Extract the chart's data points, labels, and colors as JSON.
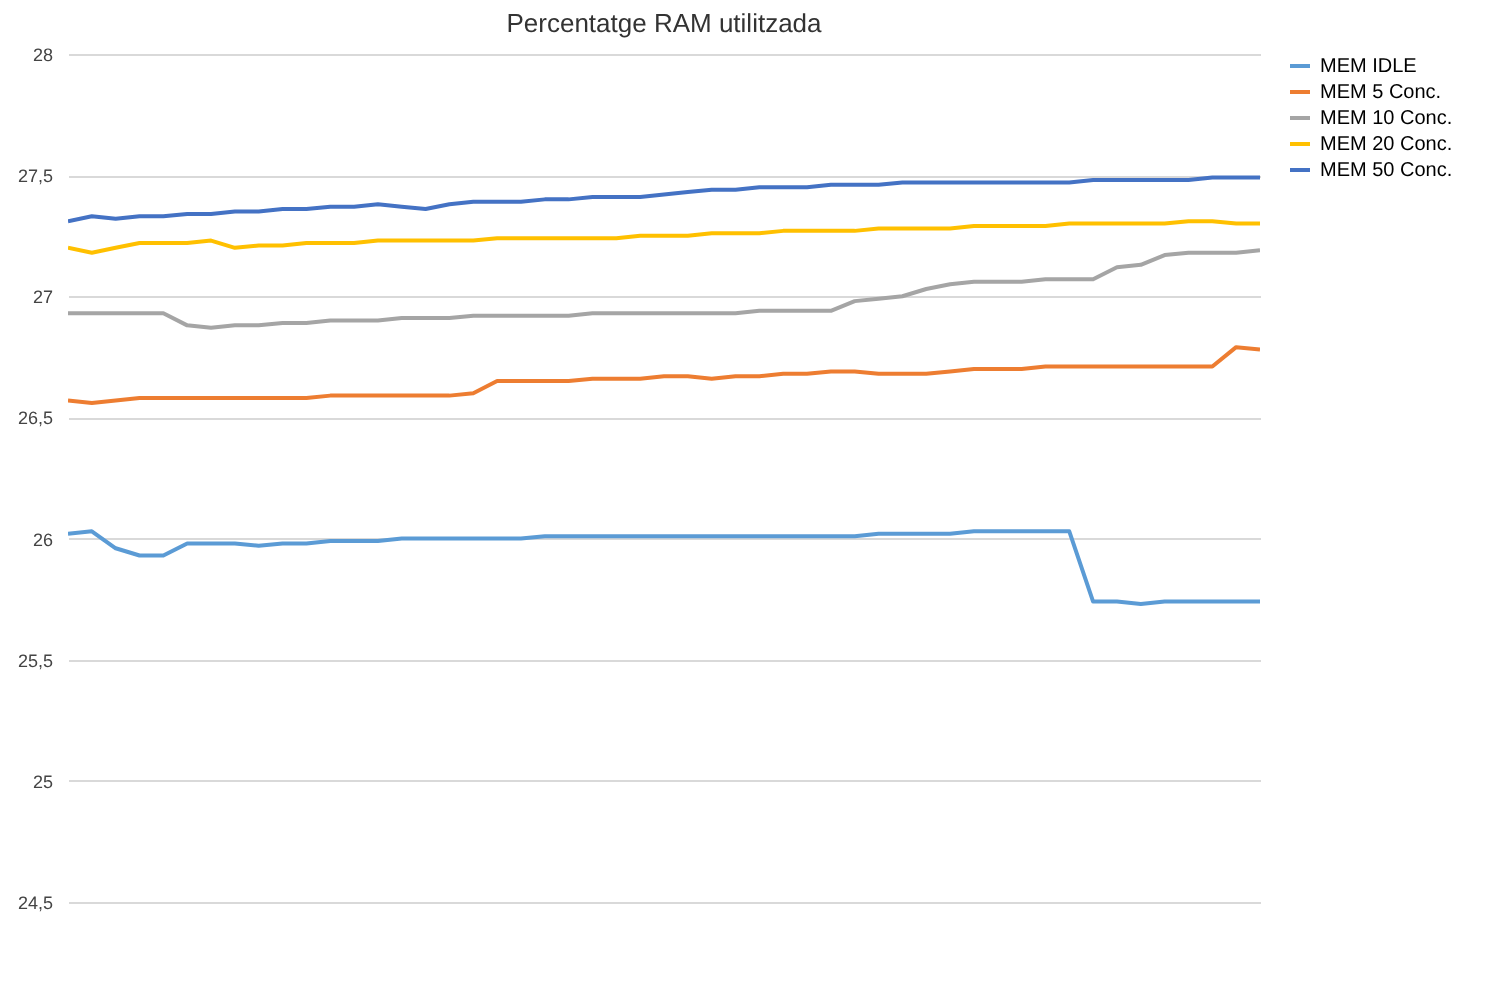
{
  "chart_data": {
    "type": "line",
    "title": "Percentatge RAM utilitzada",
    "categories": [
      null,
      null,
      null,
      null,
      null,
      null,
      null,
      null,
      null,
      null,
      null,
      null,
      null,
      null,
      null,
      null,
      null,
      null,
      null,
      null,
      null,
      null,
      null,
      null,
      null,
      null,
      null,
      null,
      null,
      null,
      null,
      null,
      null,
      null,
      null,
      null,
      null,
      null,
      null,
      null,
      null,
      null,
      null,
      null,
      null,
      null,
      null,
      null,
      null,
      null,
      null
    ],
    "ylim": [
      24.5,
      28
    ],
    "yticks": [
      {
        "value": 24.5,
        "label": "24,5"
      },
      25,
      {
        "value": 25.5,
        "label": "25,5"
      },
      26,
      {
        "value": 26.5,
        "label": "26,5"
      },
      27,
      {
        "value": 27.5,
        "label": "27,5"
      },
      28
    ],
    "grid": "y",
    "legend": "right",
    "tick_labels": "y",
    "line_style": "solid",
    "series": [
      {
        "name": "MEM IDLE",
        "color": "#5b9bd5",
        "values": [
          26.02,
          26.03,
          25.96,
          25.93,
          25.93,
          25.98,
          25.98,
          25.98,
          25.97,
          25.98,
          25.98,
          25.99,
          25.99,
          25.99,
          26.0,
          26.0,
          26.0,
          26.0,
          26.0,
          26.0,
          26.01,
          26.01,
          26.01,
          26.01,
          26.01,
          26.01,
          26.01,
          26.01,
          26.01,
          26.01,
          26.01,
          26.01,
          26.01,
          26.01,
          26.02,
          26.02,
          26.02,
          26.02,
          26.03,
          26.03,
          26.03,
          26.03,
          26.03,
          25.74,
          25.74,
          25.73,
          25.74,
          25.74,
          25.74,
          25.74,
          25.74
        ]
      },
      {
        "name": "MEM 5 Conc.",
        "color": "#ed7d31",
        "values": [
          26.57,
          26.56,
          26.57,
          26.58,
          26.58,
          26.58,
          26.58,
          26.58,
          26.58,
          26.58,
          26.58,
          26.59,
          26.59,
          26.59,
          26.59,
          26.59,
          26.59,
          26.6,
          26.65,
          26.65,
          26.65,
          26.65,
          26.66,
          26.66,
          26.66,
          26.67,
          26.67,
          26.66,
          26.67,
          26.67,
          26.68,
          26.68,
          26.69,
          26.69,
          26.68,
          26.68,
          26.68,
          26.69,
          26.7,
          26.7,
          26.7,
          26.71,
          26.71,
          26.71,
          26.71,
          26.71,
          26.71,
          26.71,
          26.71,
          26.79,
          26.78
        ]
      },
      {
        "name": "MEM 10 Conc.",
        "color": "#a5a5a5",
        "values": [
          26.93,
          26.93,
          26.93,
          26.93,
          26.93,
          26.88,
          26.87,
          26.88,
          26.88,
          26.89,
          26.89,
          26.9,
          26.9,
          26.9,
          26.91,
          26.91,
          26.91,
          26.92,
          26.92,
          26.92,
          26.92,
          26.92,
          26.93,
          26.93,
          26.93,
          26.93,
          26.93,
          26.93,
          26.93,
          26.94,
          26.94,
          26.94,
          26.94,
          26.98,
          26.99,
          27.0,
          27.03,
          27.05,
          27.06,
          27.06,
          27.06,
          27.07,
          27.07,
          27.07,
          27.12,
          27.13,
          27.17,
          27.18,
          27.18,
          27.18,
          27.19
        ]
      },
      {
        "name": "MEM 20 Conc.",
        "color": "#ffc000",
        "values": [
          27.2,
          27.18,
          27.2,
          27.22,
          27.22,
          27.22,
          27.23,
          27.2,
          27.21,
          27.21,
          27.22,
          27.22,
          27.22,
          27.23,
          27.23,
          27.23,
          27.23,
          27.23,
          27.24,
          27.24,
          27.24,
          27.24,
          27.24,
          27.24,
          27.25,
          27.25,
          27.25,
          27.26,
          27.26,
          27.26,
          27.27,
          27.27,
          27.27,
          27.27,
          27.28,
          27.28,
          27.28,
          27.28,
          27.29,
          27.29,
          27.29,
          27.29,
          27.3,
          27.3,
          27.3,
          27.3,
          27.3,
          27.31,
          27.31,
          27.3,
          27.3
        ]
      },
      {
        "name": "MEM 50 Conc.",
        "color": "#4472c4",
        "values": [
          27.31,
          27.33,
          27.32,
          27.33,
          27.33,
          27.34,
          27.34,
          27.35,
          27.35,
          27.36,
          27.36,
          27.37,
          27.37,
          27.38,
          27.37,
          27.36,
          27.38,
          27.39,
          27.39,
          27.39,
          27.4,
          27.4,
          27.41,
          27.41,
          27.41,
          27.42,
          27.43,
          27.44,
          27.44,
          27.45,
          27.45,
          27.45,
          27.46,
          27.46,
          27.46,
          27.47,
          27.47,
          27.47,
          27.47,
          27.47,
          27.47,
          27.47,
          27.47,
          27.48,
          27.48,
          27.48,
          27.48,
          27.48,
          27.49,
          27.49,
          27.49
        ]
      }
    ]
  }
}
